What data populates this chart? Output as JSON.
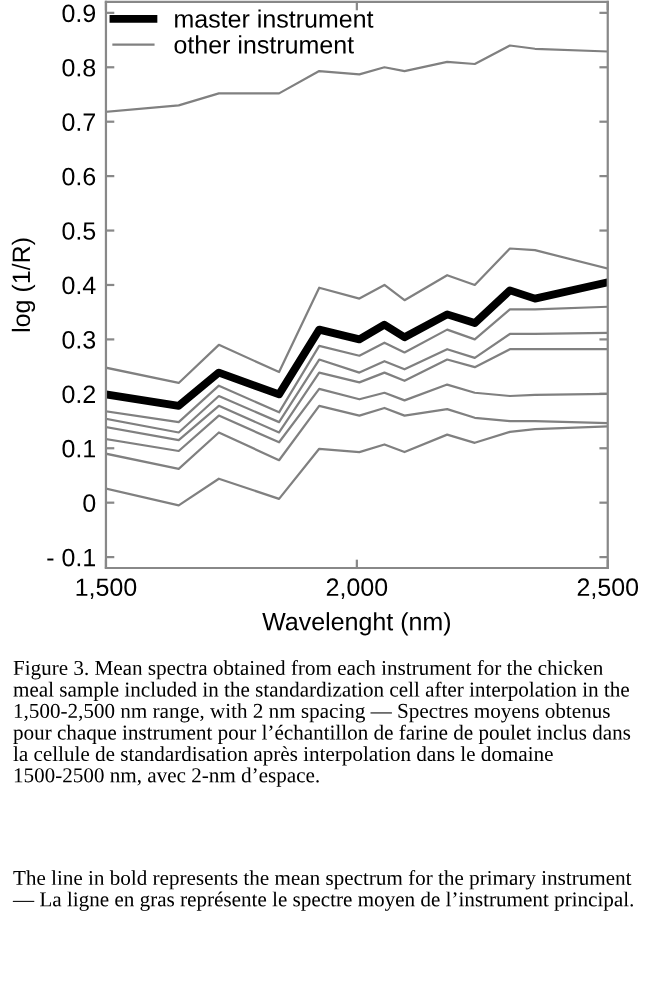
{
  "chart_data": {
    "type": "line",
    "xlabel": "Wavelenght (nm)",
    "ylabel": "log (1/R)",
    "x": [
      1500,
      1645,
      1725,
      1845,
      1925,
      2005,
      2055,
      2095,
      2180,
      2235,
      2305,
      2355,
      2500
    ],
    "xlim": [
      1500,
      2500
    ],
    "xticks": [
      {
        "value": 1500,
        "label": "1,500"
      },
      {
        "value": 2000,
        "label": "2,000"
      },
      {
        "value": 2500,
        "label": "2,500"
      }
    ],
    "ylim": [
      -0.12,
      0.92
    ],
    "yticks": [
      {
        "value": -0.1,
        "label": "- 0.1"
      },
      0,
      0.1,
      0.2,
      0.3,
      0.4,
      0.5,
      0.6,
      0.7,
      0.8,
      0.9
    ],
    "grid": false,
    "legend": "top left",
    "marker": "none",
    "line_style": "solid",
    "series": [
      {
        "name": "master instrument",
        "color": "#000000",
        "values": [
          0.199,
          0.178,
          0.239,
          0.199,
          0.318,
          0.3,
          0.327,
          0.304,
          0.346,
          0.33,
          0.39,
          0.375,
          0.405
        ]
      },
      {
        "name": "other instrument",
        "color": "#808080",
        "values": [
          0.718,
          0.73,
          0.752,
          0.752,
          0.793,
          0.787,
          0.8,
          0.793,
          0.81,
          0.806,
          0.84,
          0.834,
          0.829
        ]
      },
      {
        "color": "#808080",
        "values": [
          0.248,
          0.22,
          0.29,
          0.24,
          0.395,
          0.375,
          0.4,
          0.372,
          0.418,
          0.4,
          0.467,
          0.464,
          0.43
        ]
      },
      {
        "color": "#808080",
        "values": [
          0.168,
          0.148,
          0.215,
          0.166,
          0.288,
          0.27,
          0.294,
          0.276,
          0.318,
          0.3,
          0.355,
          0.355,
          0.36
        ]
      },
      {
        "color": "#808080",
        "values": [
          0.154,
          0.129,
          0.196,
          0.148,
          0.263,
          0.239,
          0.26,
          0.245,
          0.282,
          0.266,
          0.31,
          0.31,
          0.312
        ]
      },
      {
        "color": "#808080",
        "values": [
          0.139,
          0.115,
          0.178,
          0.129,
          0.239,
          0.221,
          0.239,
          0.224,
          0.263,
          0.249,
          0.282,
          0.282,
          0.282
        ]
      },
      {
        "color": "#808080",
        "values": [
          0.117,
          0.095,
          0.16,
          0.111,
          0.209,
          0.19,
          0.202,
          0.188,
          0.217,
          0.202,
          0.196,
          0.198,
          0.2
        ]
      },
      {
        "color": "#808080",
        "values": [
          0.09,
          0.062,
          0.129,
          0.078,
          0.178,
          0.16,
          0.174,
          0.16,
          0.172,
          0.156,
          0.15,
          0.15,
          0.146
        ]
      },
      {
        "color": "#808080",
        "values": [
          0.026,
          -0.005,
          0.044,
          0.007,
          0.099,
          0.093,
          0.107,
          0.093,
          0.125,
          0.11,
          0.13,
          0.135,
          0.14
        ]
      }
    ],
    "annotations": [
      "Figure 3. Mean spectra obtained from each instrument for the chicken meal sample included in the standardization cell after interpolation in the 1,500-2,500 nm range, with 2 nm spacing — Spectres moyens obtenus pour chaque instrument pour l’échantillon de farine de poulet inclus dans la cellule de standardisation après interpolation dans le domaine 1500-2500 nm, avec 2-nm d’espace.",
      "The line in bold represents the mean spectrum for the primary instrument — La ligne en gras représente le spectre moyen de l’instrument principal."
    ]
  }
}
